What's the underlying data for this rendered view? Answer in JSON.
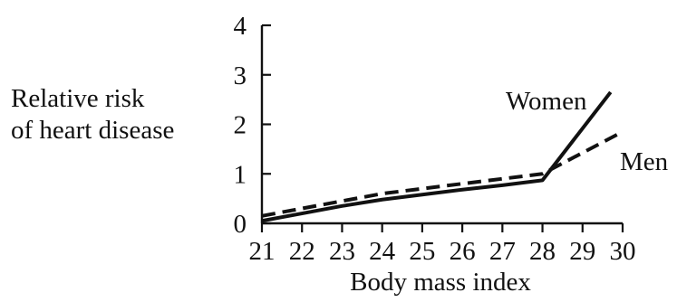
{
  "chart_data": {
    "type": "line",
    "xlabel": "Body mass index",
    "ylabel": [
      "Relative risk",
      "of heart disease"
    ],
    "xlim": [
      21,
      30
    ],
    "ylim": [
      0,
      4
    ],
    "x_ticks": [
      "21",
      "22",
      "23",
      "24",
      "25",
      "26",
      "27",
      "28",
      "29",
      "30"
    ],
    "y_ticks": [
      "0",
      "1",
      "2",
      "3",
      "4"
    ],
    "grid": false,
    "series": [
      {
        "name": "Women",
        "line_style": "solid",
        "color": "#111111",
        "x": [
          21,
          22,
          23,
          24,
          25,
          26,
          27,
          28,
          29.7
        ],
        "y": [
          0.05,
          0.2,
          0.35,
          0.48,
          0.58,
          0.68,
          0.77,
          0.87,
          2.65
        ]
      },
      {
        "name": "Men",
        "line_style": "dashed",
        "color": "#111111",
        "x": [
          21,
          22,
          23,
          24,
          25,
          26,
          27,
          28,
          30
        ],
        "y": [
          0.15,
          0.3,
          0.45,
          0.6,
          0.7,
          0.8,
          0.9,
          1.0,
          1.85
        ]
      }
    ]
  }
}
